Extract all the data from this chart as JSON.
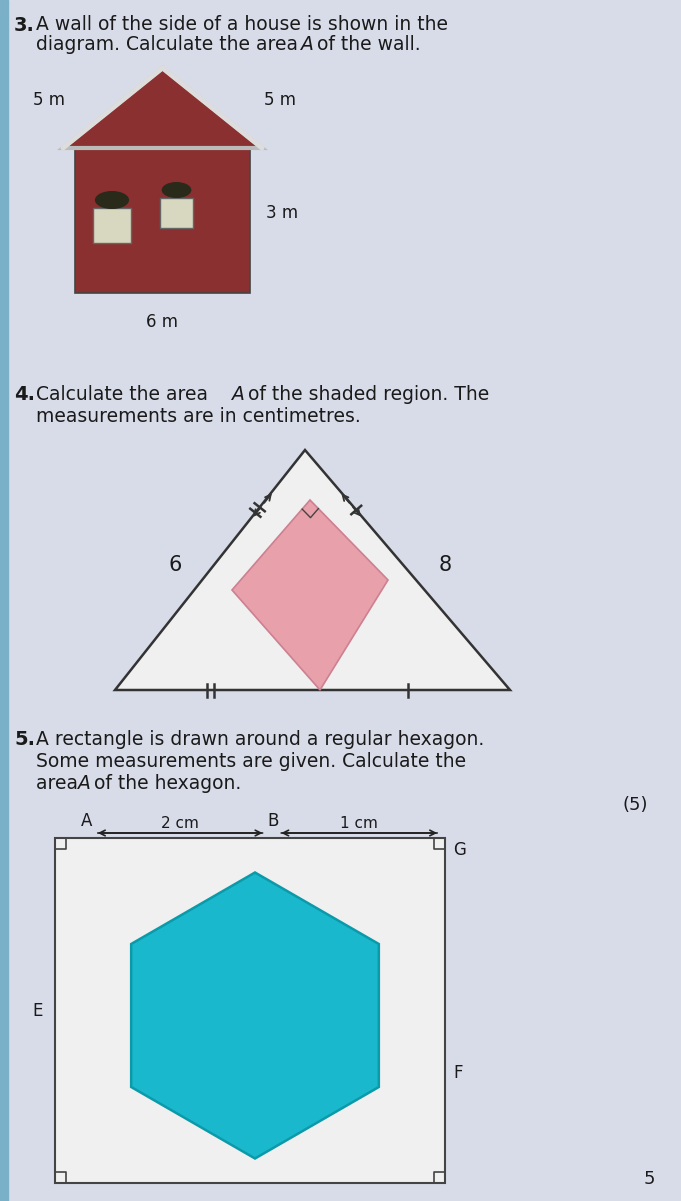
{
  "bg_color": "#d8dce8",
  "q3_num": "3.",
  "q3_text1": "A wall of the side of a house is shown in the",
  "q3_text2": "diagram. Calculate the area ",
  "q3_italic": "A",
  "q3_text3": " of the wall.",
  "house_wall_color": "#8B3030",
  "house_roof_edge": "#aaaaaa",
  "house_window_fill": "#d8d8c0",
  "house_plant_color": "#2a2a1a",
  "label_5m_left": "5 m",
  "label_5m_right": "5 m",
  "label_3m": "3 m",
  "label_6m": "6 m",
  "q4_num": "4.",
  "q4_text1": "Calculate the area ",
  "q4_italic": "A",
  "q4_text2": " of the shaded region. The",
  "q4_text3": "measurements are in centimetres.",
  "tri_fill": "#f0f0f0",
  "tri_stroke": "#333333",
  "diamond_fill": "#e8a0aa",
  "diamond_stroke": "#cc8090",
  "label_6": "6",
  "label_8": "8",
  "q5_num": "5.",
  "q5_text1": "A rectangle is drawn around a regular hexagon.",
  "q5_text2": "Some measurements are given. Calculate the",
  "q5_text3": "area ",
  "q5_italic": "A",
  "q5_text4": " of the hexagon.",
  "q5_score": "(5)",
  "rect_fill": "#f0f0f0",
  "rect_stroke": "#444444",
  "hex_fill": "#1ab8cc",
  "hex_stroke": "#0a9aaa",
  "lbl_A": "A",
  "lbl_B": "B",
  "lbl_E": "E",
  "lbl_F": "F",
  "lbl_G": "G",
  "lbl_2cm": "2 cm",
  "lbl_1cm": "1 cm",
  "footnote": "5"
}
